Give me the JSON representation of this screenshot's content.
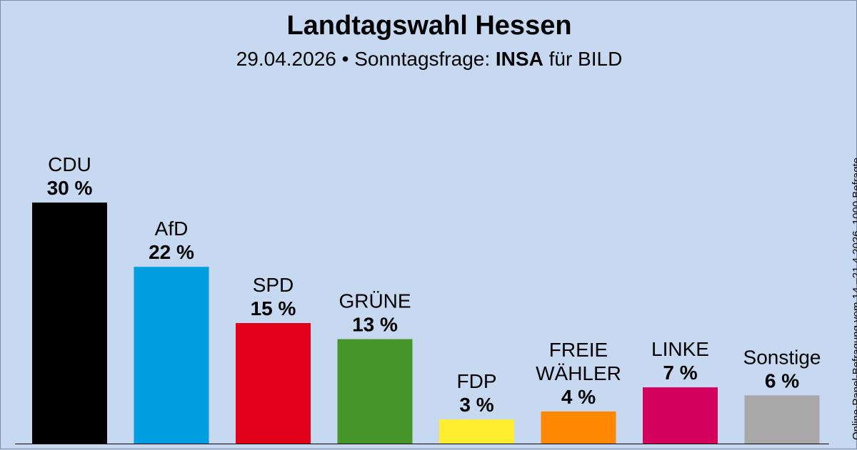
{
  "header": {
    "title": "Landtagswahl Hessen",
    "subtitle_prefix": "29.04.2026 • Sonntagsfrage: ",
    "subtitle_institute": "INSA",
    "subtitle_suffix": " für BILD"
  },
  "side_note": "Online-Panel-Befragung vom 14.–21.4.2026, 1000 Befragte",
  "chart_data": {
    "type": "bar",
    "title": "Landtagswahl Hessen",
    "subtitle": "29.04.2026 • Sonntagsfrage: INSA für BILD",
    "unit": "%",
    "categories": [
      "CDU",
      "AfD",
      "SPD",
      "GRÜNE",
      "FDP",
      "FREIE WÄHLER",
      "LINKE",
      "Sonstige"
    ],
    "values": [
      30,
      22,
      15,
      13,
      3,
      4,
      7,
      6
    ],
    "value_labels": [
      "30 %",
      "22 %",
      "15 %",
      "13 %",
      "3 %",
      "4 %",
      "7 %",
      "6 %"
    ],
    "colors": [
      "#000000",
      "#009ee0",
      "#e3001b",
      "#46962b",
      "#ffed2f",
      "#ff8800",
      "#d4005e",
      "#a8a8a8"
    ],
    "ylim": [
      0,
      30
    ],
    "grid": false,
    "legend": "none"
  }
}
